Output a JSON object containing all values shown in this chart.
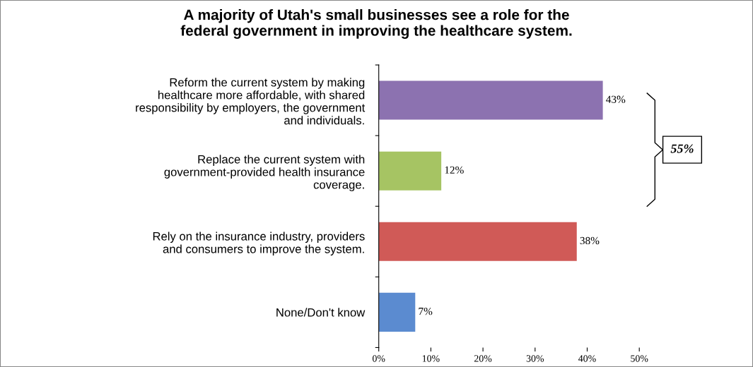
{
  "chart_data": {
    "type": "bar",
    "orientation": "horizontal",
    "title": "A majority of Utah's small businesses see a role for the\nfederal government in improving the healthcare system.",
    "categories": [
      "Reform the current system by making\nhealthcare more affordable, with shared\nresponsibility by employers, the government\nand individuals.",
      "Replace the current system with\ngovernment-provided health insurance\ncoverage.",
      "Rely on the insurance industry, providers\nand consumers to improve the system.",
      "None/Don't know"
    ],
    "values": [
      43,
      12,
      38,
      7
    ],
    "colors": [
      "#8c72b0",
      "#a6c463",
      "#d05a57",
      "#5b8bd0"
    ],
    "value_labels": [
      "43%",
      "12%",
      "38%",
      "7%"
    ],
    "xlim": [
      0,
      50
    ],
    "xticks": [
      {
        "value": 0,
        "label": "0%"
      },
      {
        "value": 10,
        "label": "10%"
      },
      {
        "value": 20,
        "label": "20%"
      },
      {
        "value": 30,
        "label": "30%"
      },
      {
        "value": 40,
        "label": "40%"
      },
      {
        "value": 50,
        "label": "50%"
      }
    ],
    "annotations": [
      "55%"
    ],
    "grid": false,
    "legend": false
  }
}
